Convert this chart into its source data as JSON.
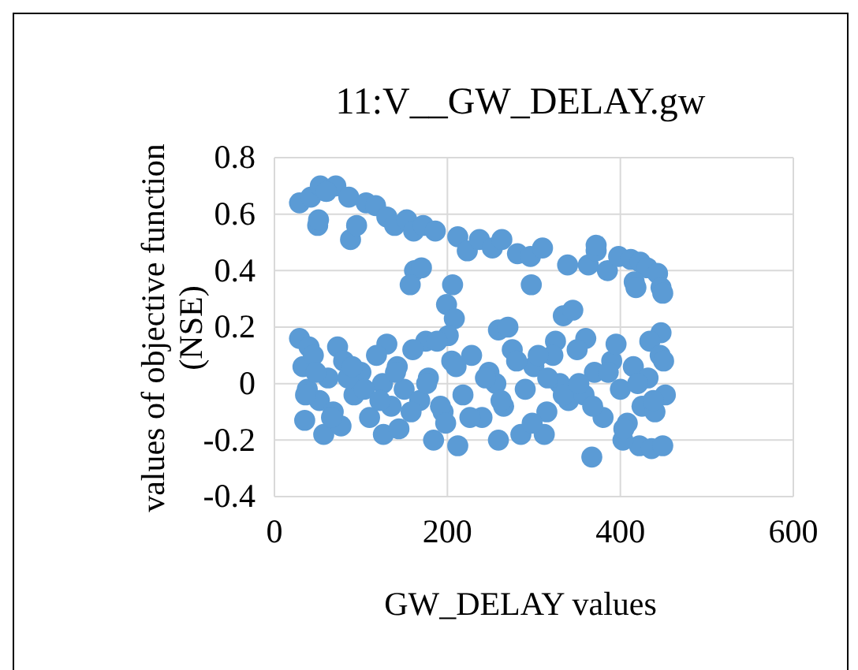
{
  "chart_data": {
    "type": "scatter",
    "title": "11:V__GW_DELAY.gw",
    "xlabel": "GW_DELAY values",
    "ylabel": "values of objective function (NSE)",
    "xlim": [
      0,
      600
    ],
    "xticks": [
      0,
      200,
      400,
      600
    ],
    "ylim": [
      -0.4,
      0.8
    ],
    "yticks": [
      -0.4,
      -0.2,
      0,
      0.2,
      0.4,
      0.6,
      0.8
    ],
    "grid": true,
    "marker": "circle",
    "series": [
      {
        "color": "#5b9bd5",
        "x": [
          29,
          42,
          53,
          50,
          71,
          51,
          88,
          86,
          106,
          117,
          130,
          139,
          153,
          161,
          172,
          186,
          162,
          170,
          157,
          212,
          223,
          237,
          252,
          263,
          281,
          296,
          310,
          339,
          363,
          372,
          385,
          398,
          412,
          423,
          431,
          443,
          447,
          416,
          206,
          199,
          208,
          201,
          334,
          345,
          297,
          418,
          449,
          372,
          95,
          60,
          29,
          40,
          73,
          130,
          175,
          188,
          259,
          270,
          325,
          360,
          447,
          434,
          35,
          57,
          77,
          126,
          144,
          184,
          212,
          259,
          285,
          312,
          367,
          422,
          436,
          449,
          403,
          33,
          38,
          45,
          52,
          62,
          68,
          80,
          92,
          100,
          110,
          118,
          125,
          135,
          142,
          150,
          160,
          168,
          178,
          195,
          205,
          218,
          228,
          240,
          248,
          256,
          265,
          275,
          290,
          300,
          315,
          322,
          330,
          340,
          350,
          358,
          370,
          380,
          390,
          400,
          408,
          415,
          425,
          432,
          440,
          446,
          452,
          36,
          48,
          66,
          85,
          104,
          122,
          140,
          158,
          176,
          192,
          210,
          226,
          244,
          262,
          280,
          298,
          316,
          334,
          352,
          368,
          386,
          404,
          420,
          438,
          450,
          90,
          198,
          305,
          395
        ],
        "values": [
          0.64,
          0.66,
          0.7,
          0.56,
          0.7,
          0.58,
          0.51,
          0.66,
          0.64,
          0.63,
          0.59,
          0.56,
          0.58,
          0.54,
          0.56,
          0.54,
          0.4,
          0.41,
          0.35,
          0.52,
          0.47,
          0.51,
          0.48,
          0.51,
          0.46,
          0.45,
          0.48,
          0.42,
          0.42,
          0.47,
          0.4,
          0.45,
          0.44,
          0.43,
          0.41,
          0.39,
          0.34,
          0.36,
          0.35,
          0.28,
          0.23,
          0.17,
          0.24,
          0.26,
          0.35,
          0.34,
          0.32,
          0.49,
          0.56,
          0.68,
          0.16,
          0.13,
          0.13,
          0.14,
          0.15,
          0.15,
          0.19,
          0.2,
          0.15,
          0.16,
          0.18,
          0.15,
          -0.13,
          -0.18,
          -0.15,
          -0.18,
          -0.16,
          -0.2,
          -0.22,
          -0.2,
          -0.18,
          -0.18,
          -0.26,
          -0.22,
          -0.23,
          -0.22,
          -0.2,
          0.06,
          -0.02,
          0.1,
          -0.06,
          0.02,
          -0.1,
          0.08,
          -0.04,
          0.04,
          -0.12,
          0.1,
          0.0,
          -0.08,
          0.06,
          -0.02,
          0.12,
          -0.06,
          0.02,
          -0.1,
          0.08,
          -0.04,
          0.1,
          -0.12,
          0.04,
          0.0,
          -0.08,
          0.12,
          -0.02,
          0.06,
          -0.1,
          0.1,
          0.0,
          -0.06,
          0.12,
          -0.04,
          0.04,
          -0.12,
          0.08,
          -0.02,
          -0.14,
          0.06,
          -0.08,
          0.02,
          -0.1,
          0.1,
          -0.04,
          -0.04,
          0.04,
          -0.12,
          0.02,
          -0.02,
          -0.06,
          0.04,
          -0.1,
          0.0,
          -0.08,
          0.06,
          -0.12,
          0.02,
          -0.06,
          0.08,
          -0.14,
          0.02,
          -0.04,
          0.0,
          -0.08,
          0.04,
          -0.16,
          0.0,
          -0.06,
          0.08,
          0.06,
          -0.14,
          0.1,
          0.14
        ]
      }
    ]
  }
}
